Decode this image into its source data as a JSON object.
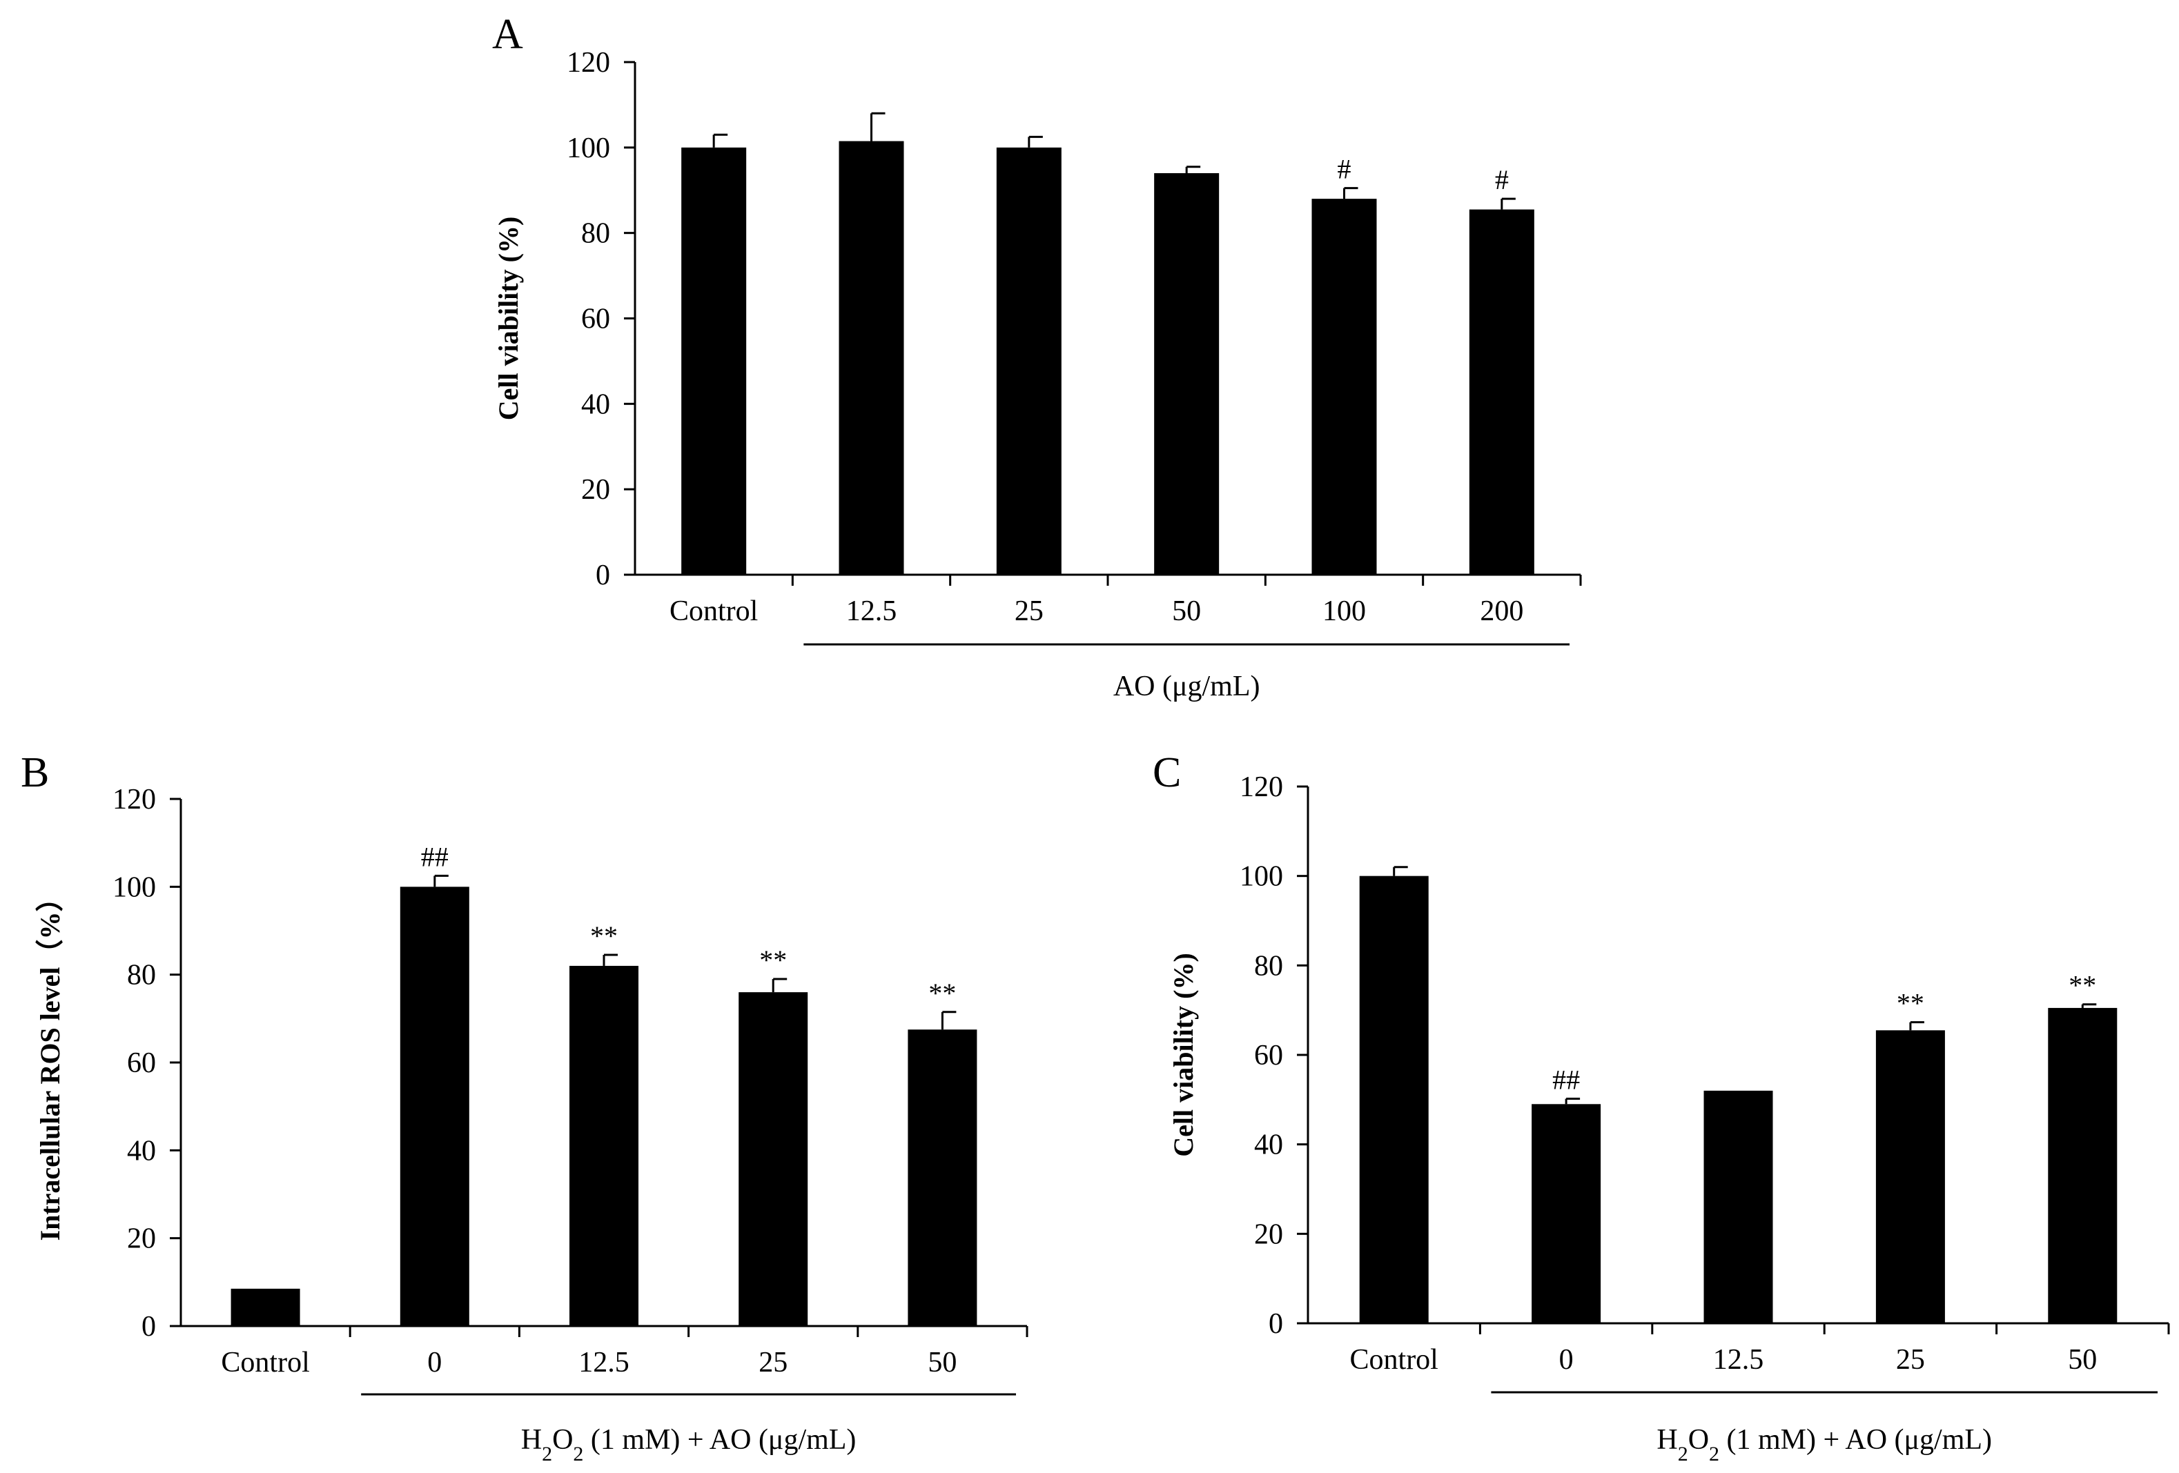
{
  "chart_data": [
    {
      "panel": "A",
      "type": "bar",
      "categories": [
        "Control",
        "12.5",
        "25",
        "50",
        "100",
        "200"
      ],
      "values": [
        100,
        101.5,
        100,
        94,
        88,
        85.5
      ],
      "errors": [
        3,
        6.5,
        2.5,
        1.5,
        2.5,
        2.5
      ],
      "annotations": [
        "",
        "",
        "",
        "",
        "#",
        "#"
      ],
      "ylabel": "Cell viability (%)",
      "xlabel": "AO (μg/mL)",
      "ylim": [
        0,
        120
      ],
      "yticks": [
        0,
        20,
        40,
        60,
        80,
        100,
        120
      ],
      "bracket_start": 1,
      "bracket_end": 5,
      "bar_color": "#000000"
    },
    {
      "panel": "B",
      "type": "bar",
      "categories": [
        "Control",
        "0",
        "12.5",
        "25",
        "50"
      ],
      "values": [
        8.5,
        100,
        82,
        76,
        67.5
      ],
      "errors": [
        0,
        2.5,
        2.5,
        3,
        4
      ],
      "annotations": [
        "",
        "##",
        "**",
        "**",
        "**"
      ],
      "ylabel": "Intracellular ROS level（%）",
      "xlabel_parts": [
        "H",
        "2",
        "O",
        "2",
        " (1 mM) + AO (μg/mL)"
      ],
      "ylim": [
        0,
        120
      ],
      "yticks": [
        0,
        20,
        40,
        60,
        80,
        100,
        120
      ],
      "bracket_start": 1,
      "bracket_end": 4,
      "bar_color": "#000000"
    },
    {
      "panel": "C",
      "type": "bar",
      "categories": [
        "Control",
        "0",
        "12.5",
        "25",
        "50"
      ],
      "values": [
        100,
        49,
        52,
        65.5,
        70.5
      ],
      "errors": [
        2,
        1.2,
        0,
        1.8,
        0.8
      ],
      "annotations": [
        "",
        "##",
        "",
        "**",
        "**"
      ],
      "ylabel": "Cell viability (%)",
      "xlabel_parts": [
        "H",
        "2",
        "O",
        "2",
        " (1 mM) + AO (μg/mL)"
      ],
      "ylim": [
        0,
        120
      ],
      "yticks": [
        0,
        20,
        40,
        60,
        80,
        100,
        120
      ],
      "bracket_start": 1,
      "bracket_end": 4,
      "bar_color": "#000000"
    }
  ]
}
